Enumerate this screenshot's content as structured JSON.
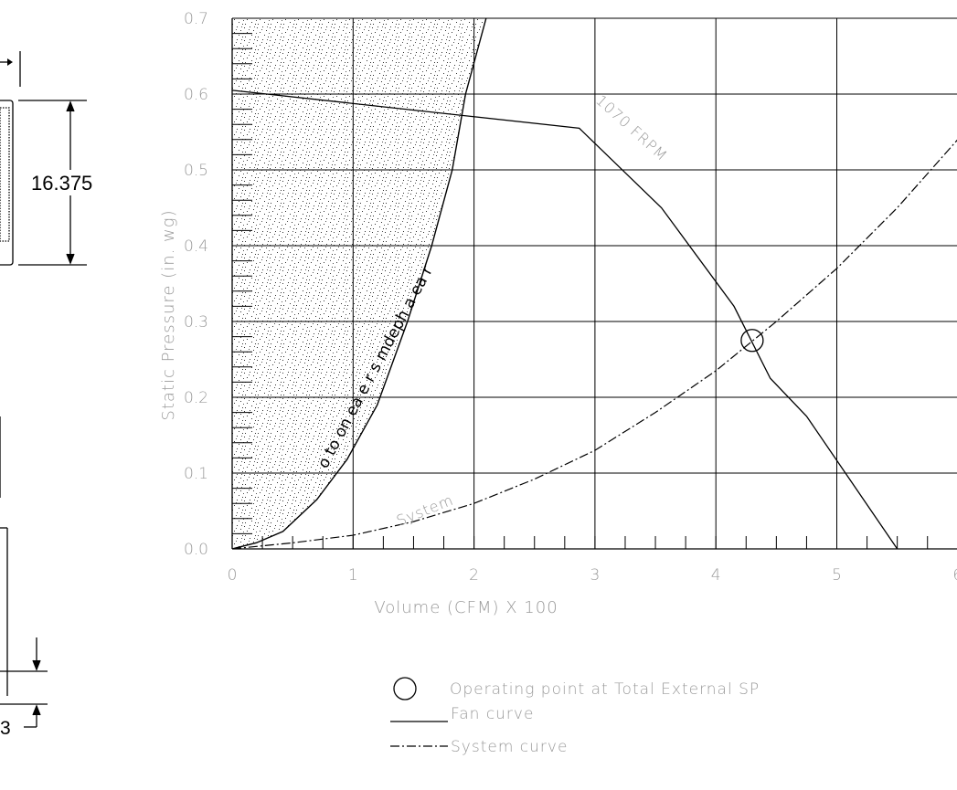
{
  "chart_data": {
    "type": "line",
    "xlabel": "Volume (CFM) X 100",
    "ylabel": "Static Pressure (in. wg)",
    "xlim": [
      0,
      6
    ],
    "ylim": [
      0,
      0.7
    ],
    "x_ticks": [
      "0",
      "1",
      "2",
      "3",
      "4",
      "5",
      "6"
    ],
    "y_ticks": [
      "0.0",
      "0.1",
      "0.2",
      "0.3",
      "0.4",
      "0.5",
      "0.6",
      "0.7"
    ],
    "grid": true,
    "series": [
      {
        "name": "1070 FRPM",
        "style": "solid",
        "x": [
          0,
          2.87,
          3.55,
          4.15,
          4.45,
          4.75,
          5.5
        ],
        "y": [
          0.605,
          0.555,
          0.45,
          0.32,
          0.225,
          0.175,
          0.0
        ]
      },
      {
        "name": "System",
        "style": "dash-dot",
        "x": [
          0,
          0.5,
          1.0,
          1.5,
          2.0,
          2.5,
          3.0,
          3.5,
          4.0,
          4.5,
          5.0,
          5.5,
          6.0
        ],
        "y": [
          0,
          0.008,
          0.018,
          0.036,
          0.06,
          0.092,
          0.13,
          0.18,
          0.235,
          0.3,
          0.37,
          0.45,
          0.54
        ]
      }
    ],
    "boundary_curve": {
      "style": "solid",
      "x": [
        0,
        0.2,
        0.42,
        0.7,
        0.95,
        1.2,
        1.45,
        1.65,
        1.82,
        1.93,
        2.1
      ],
      "y": [
        0,
        0.008,
        0.023,
        0.065,
        0.118,
        0.19,
        0.3,
        0.4,
        0.5,
        0.6,
        0.7
      ]
    },
    "operating_point": {
      "x": 4.3,
      "y": 0.275
    },
    "legend": {
      "placement": "bottom",
      "entries": [
        {
          "marker": "circle",
          "label": "Operating point at Total External SP"
        },
        {
          "marker": "solid-line",
          "label": "Fan curve"
        },
        {
          "marker": "dash-dot-line",
          "label": "System curve"
        }
      ]
    }
  },
  "dimensions": {
    "height": "16.375",
    "bottom": "3"
  },
  "region_text": "o to on ea e r s mdeph a ea r"
}
